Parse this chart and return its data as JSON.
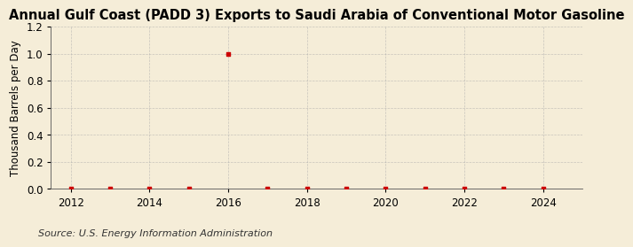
{
  "title": "Annual Gulf Coast (PADD 3) Exports to Saudi Arabia of Conventional Motor Gasoline",
  "ylabel": "Thousand Barrels per Day",
  "source": "Source: U.S. Energy Information Administration",
  "background_color": "#f5edd8",
  "x_data": [
    2012,
    2013,
    2014,
    2015,
    2016,
    2017,
    2018,
    2019,
    2020,
    2021,
    2022,
    2023,
    2024
  ],
  "y_data": [
    0,
    0,
    0,
    0,
    1.0,
    0,
    0,
    0,
    0,
    0,
    0,
    0,
    0
  ],
  "marker_color": "#cc0000",
  "grid_color": "#aaaaaa",
  "xlim": [
    2011.5,
    2025.0
  ],
  "ylim": [
    0,
    1.2
  ],
  "yticks": [
    0.0,
    0.2,
    0.4,
    0.6,
    0.8,
    1.0,
    1.2
  ],
  "xticks": [
    2012,
    2014,
    2016,
    2018,
    2020,
    2022,
    2024
  ],
  "title_fontsize": 10.5,
  "label_fontsize": 8.5,
  "tick_fontsize": 8.5,
  "source_fontsize": 8
}
